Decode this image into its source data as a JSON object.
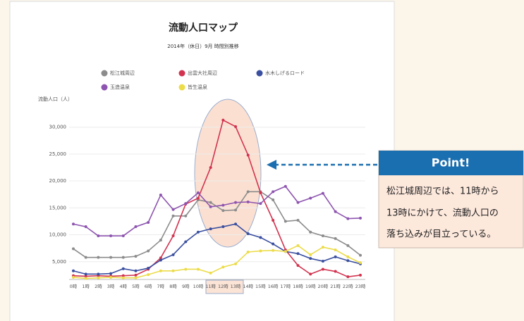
{
  "chart_data": {
    "type": "line",
    "title": "流動人口マップ",
    "subtitle": "2014年（休日）9月 時間別推移",
    "y_label": "流動人口（人）",
    "categories": [
      "0時",
      "1時",
      "2時",
      "3時",
      "4時",
      "5時",
      "6時",
      "7時",
      "8時",
      "9時",
      "10時",
      "11時",
      "12時",
      "13時",
      "14時",
      "15時",
      "16時",
      "17時",
      "18時",
      "19時",
      "20時",
      "21時",
      "22時",
      "23時"
    ],
    "series": [
      {
        "name": "松江城周辺",
        "color": "#8c8c8c",
        "values": [
          7400,
          5800,
          5800,
          5800,
          5800,
          6000,
          7000,
          9000,
          13500,
          13500,
          16500,
          16000,
          14500,
          14600,
          18000,
          18000,
          16500,
          12500,
          12700,
          10500,
          9800,
          9300,
          8000,
          6200
        ]
      },
      {
        "name": "出雲大社周辺",
        "color": "#d2334f",
        "values": [
          2400,
          2300,
          2400,
          2300,
          2400,
          2500,
          3600,
          5700,
          9800,
          15700,
          16800,
          22500,
          31300,
          30100,
          24800,
          17800,
          12700,
          7200,
          4300,
          2700,
          3600,
          3200,
          2200,
          2500
        ]
      },
      {
        "name": "水木しげるロード",
        "color": "#3a4fa0",
        "values": [
          3300,
          2700,
          2700,
          2800,
          3700,
          3300,
          3800,
          5300,
          6300,
          8700,
          10500,
          11100,
          11500,
          12000,
          10200,
          9500,
          8300,
          6900,
          6500,
          5600,
          5100,
          5900,
          5200,
          4600
        ]
      },
      {
        "name": "玉造温泉",
        "color": "#8e55b0",
        "values": [
          12000,
          11500,
          9800,
          9800,
          9800,
          11500,
          12300,
          17400,
          14700,
          15800,
          17800,
          15200,
          15500,
          16000,
          16100,
          15800,
          18000,
          19000,
          16000,
          16800,
          17700,
          14300,
          13000,
          13100
        ]
      },
      {
        "name": "皆生温泉",
        "color": "#ecdc4a",
        "values": [
          2100,
          1900,
          2000,
          2100,
          2000,
          2000,
          2600,
          3300,
          3300,
          3600,
          3600,
          2900,
          4000,
          4600,
          6800,
          7000,
          7100,
          6900,
          8000,
          6300,
          7700,
          7200,
          5900,
          4800
        ]
      }
    ],
    "ylim": [
      1700,
      34000
    ],
    "yticks": [
      {
        "value": 5000,
        "label": "5,000"
      },
      {
        "value": 10000,
        "label": "10,000"
      },
      {
        "value": 15000,
        "label": "15,000"
      },
      {
        "value": 20000,
        "label": "20,000"
      },
      {
        "value": 25000,
        "label": "25,000"
      },
      {
        "value": 30000,
        "label": "30,000"
      }
    ],
    "grid": true
  },
  "callout": {
    "title": "Point!",
    "lines": [
      "松江城周辺では、11時から",
      "13時にかけて、流動人口の",
      "落ち込みが目立っている。"
    ]
  }
}
